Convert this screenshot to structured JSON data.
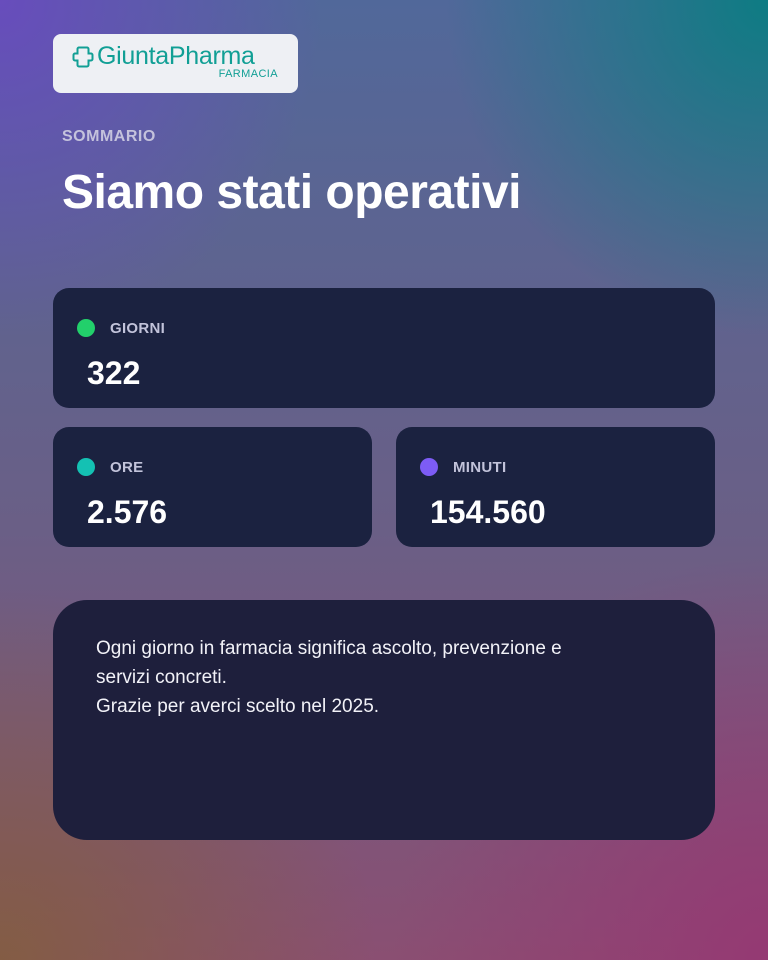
{
  "brand": {
    "name": "GiuntaPharma",
    "subtitle": "FARMACIA",
    "color": "#119f95",
    "icon": "pharmacy-cross-icon"
  },
  "header": {
    "eyebrow": "SOMMARIO",
    "title": "Siamo stati operativi"
  },
  "stats": {
    "days": {
      "label": "GIORNI",
      "value": "322",
      "dot_color": "#22d06b"
    },
    "hours": {
      "label": "ORE",
      "value": "2.576",
      "dot_color": "#14c1b3"
    },
    "minutes": {
      "label": "MINUTI",
      "value": "154.560",
      "dot_color": "#7d5cf5"
    }
  },
  "message": {
    "lines": [
      "Ogni giorno in farmacia significa ascolto, prevenzione e",
      "servizi concreti.",
      "Grazie per averci scelto nel 2025."
    ]
  }
}
